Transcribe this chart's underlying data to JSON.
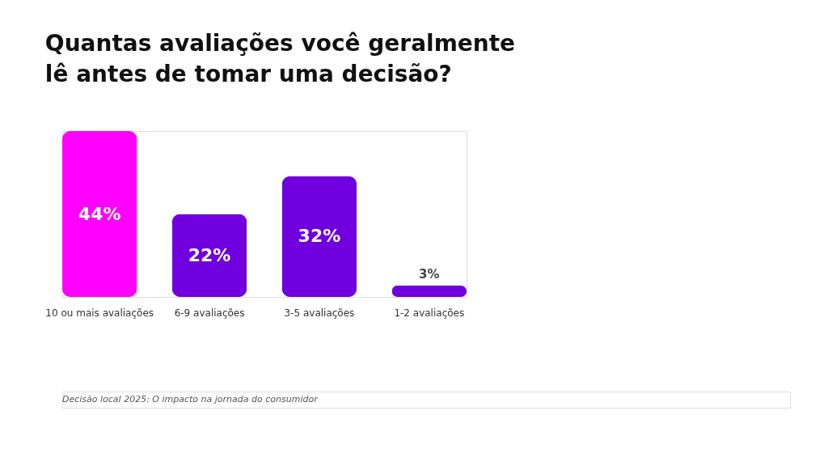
{
  "chart_data": {
    "type": "bar",
    "title": [
      "Quantas avaliações você geralmente",
      "lê antes de tomar uma decisão?"
    ],
    "categories": [
      "10 ou mais avaliações",
      "6-9 avaliações",
      "3-5 avaliações",
      "1-2 avaliações"
    ],
    "values": [
      44,
      22,
      32,
      3
    ],
    "colors": [
      "#ff00ff",
      "#7000dd",
      "#7000dd",
      "#7000dd"
    ],
    "value_labels": [
      "44%",
      "22%",
      "32%",
      "3%"
    ],
    "annotations": [
      "Decisão local 2025: O impacto na jornada do consumidor"
    ]
  }
}
